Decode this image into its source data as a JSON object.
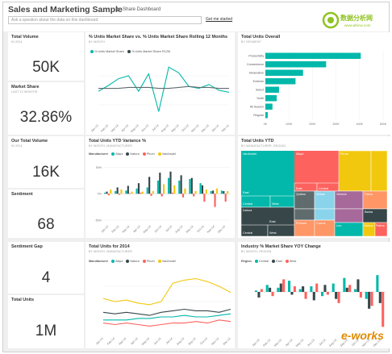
{
  "header": {
    "title": "Sales and Marketing Sample",
    "share_label": "Share Dashboard",
    "qa_placeholder": "Ask a question about the data on this dashboard",
    "get_started": "Get me started",
    "watermark_top": "数据分析网",
    "watermark_top_url": "www.afenxi.com",
    "watermark_bottom": "e-works"
  },
  "colors": {
    "teal": "#01B8AA",
    "dark": "#374649",
    "red": "#FD625E",
    "yellow": "#F2C80F",
    "gray": "#5F6B6D",
    "blue": "#8AD4EB",
    "orange": "#FE9666",
    "purple": "#A66999"
  },
  "kpis": {
    "total_volume": {
      "title": "Total Volume",
      "sub": "IN 2014",
      "value": "50K"
    },
    "market_share": {
      "title": "Market Share",
      "sub": "LAST 12 MONTHS",
      "value": "32.86%"
    },
    "our_total_volume": {
      "title": "Our Total Volume",
      "sub": "IN 2014",
      "value": "16K"
    },
    "sentiment": {
      "title": "Sentiment",
      "sub": "",
      "value": "68"
    },
    "sentiment_gap": {
      "title": "Sentiment Gap",
      "sub": "",
      "value": "4"
    },
    "total_units": {
      "title": "Total Units",
      "sub": "",
      "value": "1M"
    }
  },
  "tiles": {
    "market_share_line": {
      "title": "% Units Market Share vs. % Units Market Share Rolling 12 Months",
      "sub": "BY MONTH",
      "legend": [
        "% Units Market Share",
        "% Units Market Share R12M"
      ]
    },
    "total_units_overall": {
      "title": "Total Units Overall",
      "sub": "BY SEGMENT"
    },
    "ytd_variance": {
      "title": "Total Units YTD Variance %",
      "sub": "BY MONTH, MANUFACTURER",
      "legend_label": "Manufacturer",
      "legend": [
        "Aliqui",
        "Natura",
        "Pirum",
        "VanArsdel"
      ]
    },
    "total_units_ytd": {
      "title": "Total Units YTD",
      "sub": "BY MANUFACTURER, REGION"
    },
    "units_2014": {
      "title": "Total Units for 2014",
      "sub": "BY MONTH, MANUFACTURER",
      "legend_label": "Manufacturer",
      "legend": [
        "Aliqui",
        "Natura",
        "Pirum",
        "VanArsdel"
      ]
    },
    "yoy_change": {
      "title": "Industry % Market Share YOY Change",
      "sub": "BY MONTH, REGION",
      "legend_label": "Region",
      "legend": [
        "Central",
        "East",
        "West"
      ]
    }
  },
  "chart_data": [
    {
      "type": "line",
      "title": "% Units Market Share vs. % Units Market Share Rolling 12 Months",
      "x": [
        "Jan-13",
        "Feb-13",
        "Mar-13",
        "Apr-13",
        "May-13",
        "Jun-13",
        "Jul-13",
        "Aug-13",
        "Sep-13",
        "Oct-13",
        "Nov-13",
        "Dec-13",
        "Jan-14",
        "Feb-14"
      ],
      "series": [
        {
          "name": "% Units Market Share",
          "values": [
            32.9,
            33.5,
            34.2,
            34.5,
            32.9,
            34.7,
            30.8,
            35.4,
            34.8,
            33.4,
            33.2,
            33.6,
            33.0,
            32.8
          ]
        },
        {
          "name": "% Units Market Share R12M",
          "values": [
            33.2,
            33.2,
            33.2,
            33.3,
            33.3,
            33.3,
            33.2,
            33.2,
            33.3,
            33.4,
            33.3,
            33.3,
            33.2,
            33.2
          ]
        }
      ],
      "ylim": [
        30,
        36
      ]
    },
    {
      "type": "bar",
      "title": "Total Units Overall",
      "categories": [
        "Productivity",
        "Convenience",
        "Moderation",
        "Extreme",
        "Select",
        "Youth",
        "All Season",
        "Regular"
      ],
      "values": [
        405,
        258,
        160,
        128,
        58,
        48,
        30,
        10
      ],
      "xticks": [
        "0K",
        "100K",
        "200K",
        "300K",
        "400K",
        "500K"
      ],
      "xlim": [
        0,
        500
      ]
    },
    {
      "type": "bar",
      "title": "Total Units YTD Variance %",
      "categories": [
        "Jan-14",
        "Feb-14",
        "Mar-14",
        "Apr-14",
        "May-14",
        "Jun-14",
        "Jul-14",
        "Aug-14",
        "Sep-14",
        "Oct-14",
        "Nov-14",
        "Dec-14"
      ],
      "series": [
        {
          "name": "Aliqui",
          "values": [
            2,
            5,
            6,
            10,
            12,
            25,
            30,
            25,
            28,
            20,
            5,
            6
          ]
        },
        {
          "name": "Natura",
          "values": [
            4,
            12,
            15,
            20,
            32,
            40,
            42,
            35,
            30,
            16,
            6,
            5
          ]
        },
        {
          "name": "Pirum",
          "values": [
            -3,
            -2,
            1,
            2,
            -4,
            -5,
            2,
            -7,
            -5,
            -15,
            -25,
            -15
          ]
        },
        {
          "name": "VanArsdel",
          "values": [
            8,
            8,
            4,
            4,
            5,
            18,
            16,
            10,
            5,
            8,
            10,
            5
          ]
        }
      ],
      "yticks": [
        "50%",
        "0%",
        "-50%"
      ],
      "ylim": [
        -50,
        60
      ]
    },
    {
      "type": "heatmap",
      "title": "Total Units YTD",
      "labels": [
        "VanArsdel",
        "East",
        "Central",
        "West",
        "Natura",
        "Central",
        "West",
        "East",
        "Aliqui",
        "East",
        "Central",
        "Pirum",
        "Quibus",
        "Abbas",
        "Pomum",
        "Victoria",
        "Barba",
        "Fama",
        "Leo",
        "Salvus",
        "Palma",
        "Currus"
      ]
    },
    {
      "type": "line",
      "title": "Total Units for 2014",
      "x": [
        "Jan-14",
        "Feb-14",
        "Mar-14",
        "Apr-14",
        "May-14",
        "Jun-14",
        "Jul-14",
        "Aug-14",
        "Sep-14",
        "Oct-14",
        "Nov-14",
        "Dec-14"
      ],
      "series": [
        {
          "name": "Aliqui",
          "values": [
            8,
            8,
            8,
            9,
            9,
            10,
            10,
            11,
            10,
            10,
            11,
            12
          ]
        },
        {
          "name": "Natura",
          "values": [
            13,
            12,
            13,
            12,
            11,
            13,
            14,
            15,
            14,
            14,
            13,
            15
          ]
        },
        {
          "name": "Pirum",
          "values": [
            6,
            5,
            6,
            5,
            4,
            5,
            6,
            6,
            7,
            6,
            8,
            7
          ]
        },
        {
          "name": "VanArsdel",
          "values": [
            22,
            20,
            21,
            19,
            18,
            20,
            32,
            34,
            35,
            33,
            30,
            26
          ]
        }
      ],
      "ylim": [
        0,
        40
      ]
    },
    {
      "type": "bar",
      "title": "Industry % Market Share YOY Change",
      "categories": [
        "Jan-13",
        "Feb-13",
        "Mar-13",
        "Apr-13",
        "May-13",
        "Jun-13",
        "Jul-13",
        "Aug-13",
        "Sep-13",
        "Oct-13",
        "Nov-13",
        "Dec-13"
      ],
      "series": [
        {
          "name": "Central",
          "values": [
            1,
            5,
            3,
            8,
            2,
            4,
            -3,
            6,
            10,
            2,
            -5,
            12
          ]
        },
        {
          "name": "East",
          "values": [
            -4,
            3,
            6,
            -2,
            4,
            -6,
            5,
            -5,
            3,
            9,
            -12,
            -8
          ]
        },
        {
          "name": "West",
          "values": [
            2,
            -3,
            9,
            4,
            -5,
            6,
            -2,
            -8,
            5,
            -4,
            -10,
            -25
          ]
        }
      ],
      "ylim": [
        -30,
        15
      ]
    }
  ]
}
